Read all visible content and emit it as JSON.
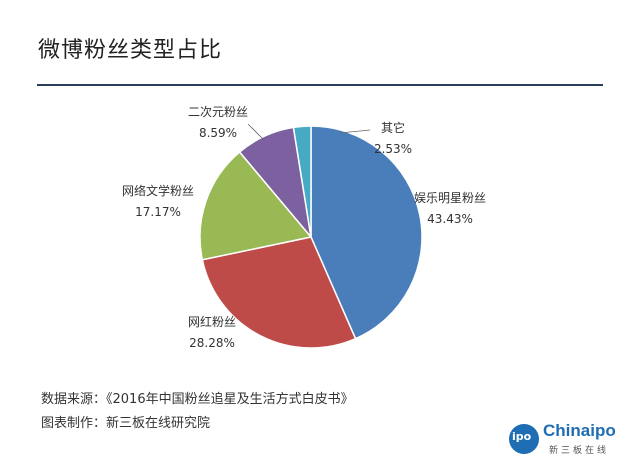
{
  "title": "微博粉丝类型占比",
  "chart_data": {
    "type": "pie",
    "slices": [
      {
        "label": "娱乐明星粉丝",
        "value": 43.43,
        "value_text": "43.43%",
        "color": "#4a7ebb"
      },
      {
        "label": "网红粉丝",
        "value": 28.28,
        "value_text": "28.28%",
        "color": "#be4b48"
      },
      {
        "label": "网络文学粉丝",
        "value": 17.17,
        "value_text": "17.17%",
        "color": "#98b954"
      },
      {
        "label": "二次元粉丝",
        "value": 8.59,
        "value_text": "8.59%",
        "color": "#7d60a0"
      },
      {
        "label": "其它",
        "value": 2.53,
        "value_text": "2.53%",
        "color": "#46aac5"
      }
    ]
  },
  "source": {
    "data_source": "数据来源：《2016年中国粉丝追星及生活方式白皮书》",
    "made_by": "图表制作：新三板在线研究院"
  },
  "logo": {
    "badge": "ipo",
    "name": "Chinaipo",
    "sub": "新三板在线"
  },
  "colors": {
    "rule": "#2b3d5b",
    "logo": "#1f6db3"
  }
}
